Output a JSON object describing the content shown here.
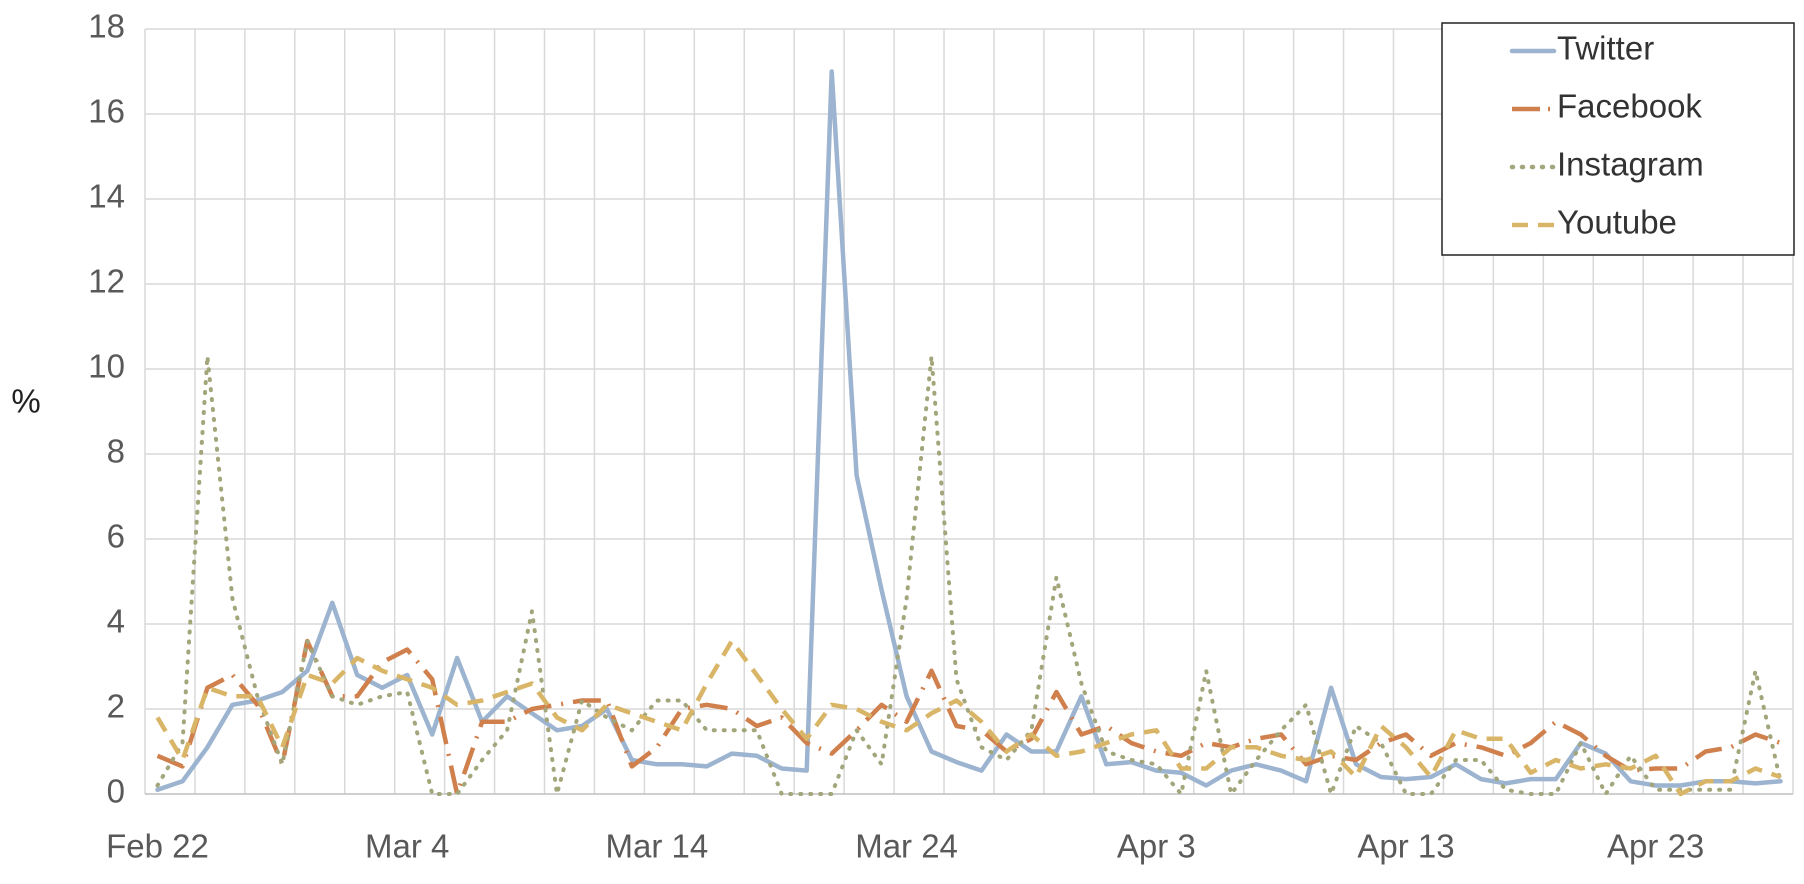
{
  "chart_data": {
    "type": "line",
    "y_label": "%",
    "categories": [
      "Feb 22",
      null,
      null,
      null,
      null,
      null,
      null,
      null,
      null,
      null,
      "Mar 4",
      null,
      null,
      null,
      null,
      null,
      null,
      null,
      null,
      null,
      "Mar 14",
      null,
      null,
      null,
      null,
      null,
      null,
      null,
      null,
      null,
      "Mar 24",
      null,
      null,
      null,
      null,
      null,
      null,
      null,
      null,
      null,
      "Apr 3",
      null,
      null,
      null,
      null,
      null,
      null,
      null,
      null,
      null,
      "Apr 13",
      null,
      null,
      null,
      null,
      null,
      null,
      null,
      null,
      null,
      "Apr 23",
      null,
      null,
      null,
      null,
      null
    ],
    "series": [
      {
        "name": "Twitter",
        "color": "#9cb4d0",
        "dash": "solid",
        "values": [
          0.1,
          0.3,
          1.1,
          2.1,
          2.2,
          2.4,
          2.9,
          4.5,
          2.8,
          2.5,
          2.8,
          1.4,
          3.2,
          1.7,
          2.3,
          1.9,
          1.5,
          1.6,
          2.0,
          0.8,
          0.7,
          0.7,
          0.65,
          0.95,
          0.9,
          0.6,
          0.55,
          17.0,
          7.5,
          4.8,
          2.3,
          1.0,
          0.75,
          0.55,
          1.4,
          1.0,
          1.0,
          2.3,
          0.7,
          0.75,
          0.55,
          0.5,
          0.2,
          0.55,
          0.7,
          0.55,
          0.3,
          2.5,
          0.7,
          0.4,
          0.35,
          0.4,
          0.7,
          0.35,
          0.25,
          0.35,
          0.35,
          1.2,
          0.95,
          0.3,
          0.2,
          0.2,
          0.3,
          0.3,
          0.25,
          0.3
        ]
      },
      {
        "name": "Facebook",
        "color": "#d0804c",
        "dash": "dashdot",
        "values": [
          0.9,
          0.65,
          2.5,
          2.8,
          2.1,
          0.7,
          3.6,
          2.3,
          2.3,
          3.1,
          3.4,
          2.7,
          0.0,
          1.7,
          1.7,
          2.0,
          2.1,
          2.2,
          2.2,
          0.65,
          1.1,
          2.0,
          2.1,
          2.0,
          1.6,
          1.8,
          1.2,
          0.95,
          1.5,
          2.1,
          1.7,
          2.9,
          1.6,
          1.5,
          1.0,
          1.3,
          2.4,
          1.4,
          1.6,
          1.2,
          1.0,
          0.9,
          1.2,
          1.1,
          1.3,
          1.4,
          0.7,
          0.9,
          0.8,
          1.2,
          1.4,
          0.9,
          1.2,
          1.1,
          0.9,
          1.2,
          1.7,
          1.4,
          0.9,
          0.55,
          0.6,
          0.6,
          1.0,
          1.1,
          1.4,
          1.2
        ]
      },
      {
        "name": "Instagram",
        "color": "#a3a57a",
        "dash": "dot",
        "values": [
          0.2,
          1.2,
          10.3,
          4.6,
          2.3,
          0.7,
          3.6,
          2.3,
          2.1,
          2.3,
          2.4,
          0,
          0,
          0.8,
          1.5,
          4.3,
          0,
          2.2,
          1.8,
          1.5,
          2.2,
          2.2,
          1.5,
          1.5,
          1.5,
          0,
          0,
          0,
          1.5,
          0.7,
          4.6,
          10.3,
          2.7,
          1.1,
          0.8,
          1.5,
          5.1,
          2.6,
          1.0,
          0.8,
          0.7,
          0,
          2.9,
          0,
          0.8,
          1.5,
          2.1,
          0,
          1.6,
          1.2,
          0,
          0,
          0.8,
          0.8,
          0.1,
          0,
          0,
          1.2,
          0,
          0.9,
          0.1,
          0.1,
          0.1,
          0.1,
          2.9,
          0.3
        ]
      },
      {
        "name": "Youtube",
        "color": "#d9b567",
        "dash": "dash",
        "values": [
          1.8,
          0.8,
          2.5,
          2.3,
          2.3,
          1.1,
          2.8,
          2.6,
          3.2,
          2.9,
          2.7,
          2.5,
          2.1,
          2.2,
          2.4,
          2.6,
          1.8,
          1.5,
          2.1,
          1.9,
          1.7,
          1.5,
          2.6,
          3.6,
          2.8,
          2.0,
          1.3,
          2.1,
          2.0,
          1.7,
          1.5,
          1.9,
          2.2,
          1.7,
          1.0,
          1.4,
          0.9,
          1.0,
          1.2,
          1.4,
          1.5,
          0.6,
          0.6,
          1.1,
          1.1,
          0.9,
          0.8,
          1.0,
          0.4,
          1.6,
          1.1,
          0.4,
          1.5,
          1.3,
          1.3,
          0.5,
          0.8,
          0.6,
          0.7,
          0.6,
          0.9,
          0,
          0.3,
          0.3,
          0.6,
          0.4
        ]
      }
    ],
    "ylim": [
      0,
      18
    ],
    "yticks": [
      0,
      2,
      4,
      6,
      8,
      10,
      12,
      14,
      16,
      18
    ],
    "grid": true,
    "legend": "top-right"
  }
}
